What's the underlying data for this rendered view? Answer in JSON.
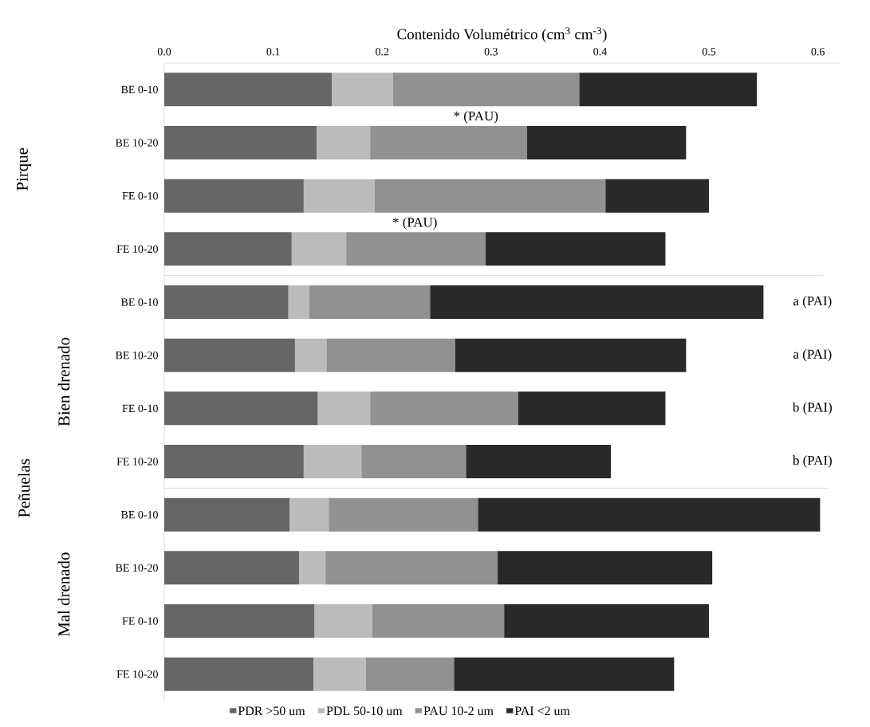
{
  "chart_data": {
    "type": "bar",
    "orientation": "horizontal",
    "stacked": true,
    "xlabel": "Contenido Volumétrico (cm$^{3}$  cm$^{-3}$)",
    "categories": [
      "BE 0-10",
      "BE 10-20",
      "FE 0-10",
      "FE 10-20",
      "BE 0-10",
      "BE 10-20",
      "FE 0-10",
      "FE 10-20",
      "BE 0-10",
      "BE 10-20",
      "FE 0-10",
      "FE 10-20"
    ],
    "series": [
      {
        "name": "PDR >50 um",
        "color": "#666666",
        "values": [
          0.154,
          0.14,
          0.128,
          0.117,
          0.114,
          0.12,
          0.141,
          0.128,
          0.115,
          0.124,
          0.138,
          0.137
        ]
      },
      {
        "name": "PDL 50-10 um",
        "color": "#bbbbbb",
        "values": [
          0.056,
          0.049,
          0.065,
          0.05,
          0.019,
          0.029,
          0.048,
          0.053,
          0.036,
          0.024,
          0.053,
          0.048
        ]
      },
      {
        "name": "PAU 10-2 um",
        "color": "#919191",
        "values": [
          0.171,
          0.144,
          0.212,
          0.128,
          0.111,
          0.118,
          0.136,
          0.096,
          0.137,
          0.158,
          0.121,
          0.081
        ]
      },
      {
        "name": "PAI <2 um",
        "color": "#292929",
        "values": [
          0.163,
          0.146,
          0.095,
          0.165,
          0.306,
          0.212,
          0.135,
          0.133,
          0.314,
          0.197,
          0.188,
          0.202
        ]
      }
    ],
    "xlim": [
      0,
      0.62
    ],
    "xticks": [
      {
        "value": 0,
        "label": "0.0"
      },
      0.1,
      0.2,
      0.3,
      0.4,
      0.5,
      0.6
    ],
    "legend": "bottom",
    "annotations": [
      "Pirque",
      "Peñuelas",
      "Bien drenado",
      "Mal drenado",
      "* (PAU)",
      "* (PAU)",
      "a (PAI)",
      "a (PAI)",
      "b (PAI)",
      "b (PAI)"
    ]
  }
}
